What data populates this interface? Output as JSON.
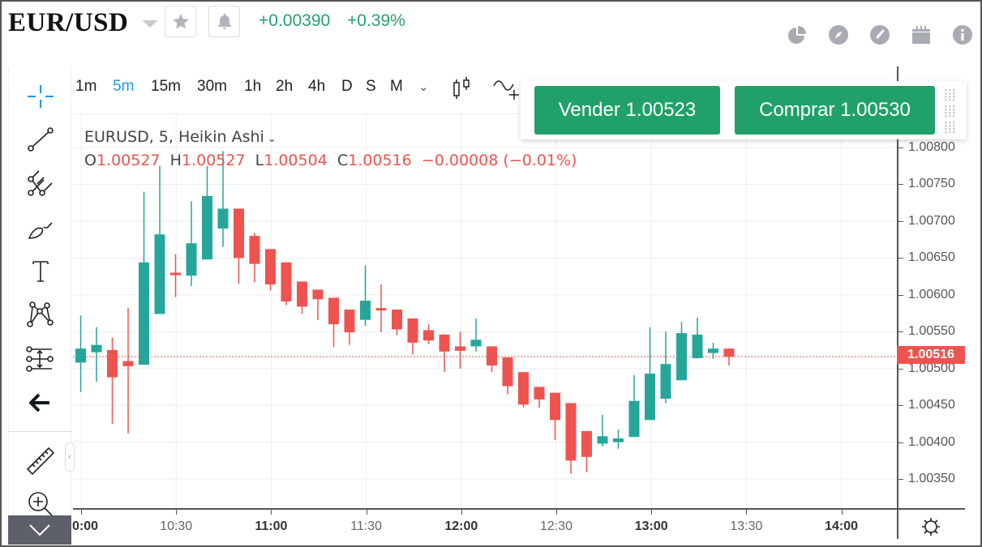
{
  "header": {
    "symbol": "EUR/USD",
    "change_abs": "+0.00390",
    "change_pct": "+0.39%",
    "change_color": "#26a06a",
    "icons": [
      "star-icon",
      "bell-icon",
      "pie-chart-icon",
      "compass-icon",
      "gauge-icon",
      "calendar-icon",
      "info-icon"
    ]
  },
  "toolbar": {
    "intervals": [
      "1m",
      "5m",
      "15m",
      "30m",
      "1h",
      "2h",
      "4h",
      "D",
      "S",
      "M"
    ],
    "active_interval": "5m",
    "more_label": "⌄"
  },
  "left_tools": [
    "crosshair-icon",
    "trend-line-icon",
    "pitchfork-icon",
    "brush-icon",
    "text-icon",
    "pattern-icon",
    "measure-projection-icon",
    "back-arrow-icon",
    "ruler-icon",
    "zoom-in-icon"
  ],
  "legend": {
    "title": "EURUSD, 5, Heikin Ashi",
    "o_label": "O",
    "o_value": "1.00527",
    "h_label": "H",
    "h_value": "1.00527",
    "l_label": "L",
    "l_value": "1.00504",
    "c_label": "C",
    "c_value": "1.00516",
    "change": "−0.00008 (−0.01%)"
  },
  "trade": {
    "sell_label": "Vender 1.00523",
    "buy_label": "Comprar 1.00530",
    "color": "#22a06b"
  },
  "last_price": "1.00516",
  "colors": {
    "up": "#26a69a",
    "down": "#ef5350",
    "grid": "#e8eef2"
  },
  "chart_data": {
    "type": "candlestick",
    "title": "EURUSD, 5, Heikin Ashi",
    "xlabel": "",
    "ylabel": "",
    "ylim": [
      1.0032,
      1.0085
    ],
    "y_ticks": [
      "1.00800",
      "1.00750",
      "1.00700",
      "1.00650",
      "1.00600",
      "1.00550",
      "1.00500",
      "1.00450",
      "1.00400",
      "1.00350"
    ],
    "x_ticks": [
      {
        "label": "0:00",
        "bold": true
      },
      {
        "label": "10:30",
        "bold": false
      },
      {
        "label": "11:00",
        "bold": true
      },
      {
        "label": "11:30",
        "bold": false
      },
      {
        "label": "12:00",
        "bold": true
      },
      {
        "label": "12:30",
        "bold": false
      },
      {
        "label": "13:00",
        "bold": true
      },
      {
        "label": "13:30",
        "bold": false
      },
      {
        "label": "14:00",
        "bold": true
      }
    ],
    "last_price": 1.00516,
    "candles": [
      {
        "o": 1.00508,
        "h": 1.00572,
        "l": 1.00468,
        "c": 1.00527
      },
      {
        "o": 1.00522,
        "h": 1.00556,
        "l": 1.00482,
        "c": 1.00532
      },
      {
        "o": 1.00525,
        "h": 1.00542,
        "l": 1.00425,
        "c": 1.00488
      },
      {
        "o": 1.0051,
        "h": 1.00582,
        "l": 1.00412,
        "c": 1.00503
      },
      {
        "o": 1.00505,
        "h": 1.0074,
        "l": 1.00505,
        "c": 1.00644
      },
      {
        "o": 1.00574,
        "h": 1.00775,
        "l": 1.00574,
        "c": 1.00682
      },
      {
        "o": 1.0063,
        "h": 1.00655,
        "l": 1.00597,
        "c": 1.00627
      },
      {
        "o": 1.00626,
        "h": 1.00727,
        "l": 1.00612,
        "c": 1.0067
      },
      {
        "o": 1.00648,
        "h": 1.00775,
        "l": 1.00648,
        "c": 1.00734
      },
      {
        "o": 1.0069,
        "h": 1.00795,
        "l": 1.00665,
        "c": 1.00717
      },
      {
        "o": 1.00717,
        "h": 1.00717,
        "l": 1.00615,
        "c": 1.0065
      },
      {
        "o": 1.0068,
        "h": 1.00684,
        "l": 1.00617,
        "c": 1.00642
      },
      {
        "o": 1.00662,
        "h": 1.00662,
        "l": 1.00606,
        "c": 1.00614
      },
      {
        "o": 1.00644,
        "h": 1.00644,
        "l": 1.00586,
        "c": 1.00591
      },
      {
        "o": 1.00618,
        "h": 1.00618,
        "l": 1.00574,
        "c": 1.00584
      },
      {
        "o": 1.00607,
        "h": 1.00607,
        "l": 1.00566,
        "c": 1.00594
      },
      {
        "o": 1.00596,
        "h": 1.00596,
        "l": 1.00529,
        "c": 1.0056
      },
      {
        "o": 1.0058,
        "h": 1.0058,
        "l": 1.00532,
        "c": 1.00549
      },
      {
        "o": 1.00566,
        "h": 1.0064,
        "l": 1.00558,
        "c": 1.00592
      },
      {
        "o": 1.00582,
        "h": 1.00614,
        "l": 1.00549,
        "c": 1.0058
      },
      {
        "o": 1.0058,
        "h": 1.0058,
        "l": 1.00545,
        "c": 1.00553
      },
      {
        "o": 1.00568,
        "h": 1.00568,
        "l": 1.00519,
        "c": 1.00535
      },
      {
        "o": 1.00552,
        "h": 1.0056,
        "l": 1.00533,
        "c": 1.00538
      },
      {
        "o": 1.00546,
        "h": 1.00546,
        "l": 1.00495,
        "c": 1.00523
      },
      {
        "o": 1.0053,
        "h": 1.0055,
        "l": 1.005,
        "c": 1.00524
      },
      {
        "o": 1.0053,
        "h": 1.00568,
        "l": 1.00523,
        "c": 1.00539
      },
      {
        "o": 1.0053,
        "h": 1.0053,
        "l": 1.00495,
        "c": 1.00504
      },
      {
        "o": 1.00515,
        "h": 1.00515,
        "l": 1.00465,
        "c": 1.00476
      },
      {
        "o": 1.00495,
        "h": 1.00495,
        "l": 1.00447,
        "c": 1.00451
      },
      {
        "o": 1.00475,
        "h": 1.00475,
        "l": 1.00447,
        "c": 1.00458
      },
      {
        "o": 1.00467,
        "h": 1.00467,
        "l": 1.00403,
        "c": 1.0043
      },
      {
        "o": 1.00453,
        "h": 1.00453,
        "l": 1.00357,
        "c": 1.00375
      },
      {
        "o": 1.00415,
        "h": 1.00415,
        "l": 1.00359,
        "c": 1.0038
      },
      {
        "o": 1.00398,
        "h": 1.00437,
        "l": 1.00394,
        "c": 1.00408
      },
      {
        "o": 1.004,
        "h": 1.00417,
        "l": 1.00391,
        "c": 1.00405
      },
      {
        "o": 1.00407,
        "h": 1.00491,
        "l": 1.00407,
        "c": 1.00456
      },
      {
        "o": 1.0043,
        "h": 1.00556,
        "l": 1.0043,
        "c": 1.00493
      },
      {
        "o": 1.00459,
        "h": 1.0055,
        "l": 1.00453,
        "c": 1.00506
      },
      {
        "o": 1.00484,
        "h": 1.00563,
        "l": 1.00484,
        "c": 1.00548
      },
      {
        "o": 1.00514,
        "h": 1.00569,
        "l": 1.00514,
        "c": 1.00546
      },
      {
        "o": 1.00521,
        "h": 1.00535,
        "l": 1.00513,
        "c": 1.00527
      },
      {
        "o": 1.00527,
        "h": 1.00527,
        "l": 1.00504,
        "c": 1.00516
      }
    ]
  }
}
